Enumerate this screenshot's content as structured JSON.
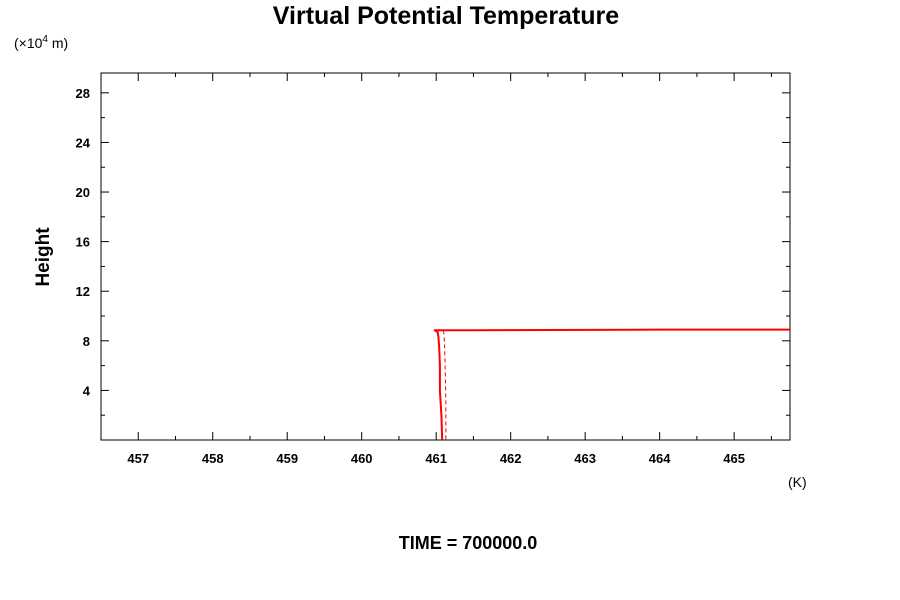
{
  "chart_data": {
    "type": "line",
    "title": "Virtual Potential Temperature",
    "ylabel": "Height",
    "y_unit_base": "(×10",
    "y_unit_exp": "4",
    "y_unit_suffix": " m)",
    "x_unit": "(K)",
    "footer": "TIME = 700000.0",
    "xlim": [
      456.5,
      465.75
    ],
    "ylim": [
      0,
      29.6
    ],
    "x_ticks": [
      457,
      458,
      459,
      460,
      461,
      462,
      463,
      464,
      465
    ],
    "y_ticks": [
      4,
      8,
      12,
      16,
      20,
      24,
      28
    ],
    "series": [
      {
        "style": "solid",
        "color": "#ff0000",
        "x": [
          461.08,
          461.07,
          461.05,
          461.05,
          461.04,
          461.03,
          461.02,
          460.98,
          461.5,
          462.0,
          463.0,
          464.0,
          465.0,
          465.75
        ],
        "y": [
          0.05,
          2.0,
          4.0,
          6.0,
          7.5,
          8.3,
          8.7,
          8.85,
          8.85,
          8.86,
          8.88,
          8.9,
          8.9,
          8.9
        ]
      },
      {
        "style": "dashed",
        "color": "#ff0000",
        "x": [
          461.13,
          461.13,
          461.12,
          461.11,
          461.1
        ],
        "y": [
          0.05,
          3.0,
          6.0,
          8.0,
          8.8
        ]
      }
    ]
  }
}
